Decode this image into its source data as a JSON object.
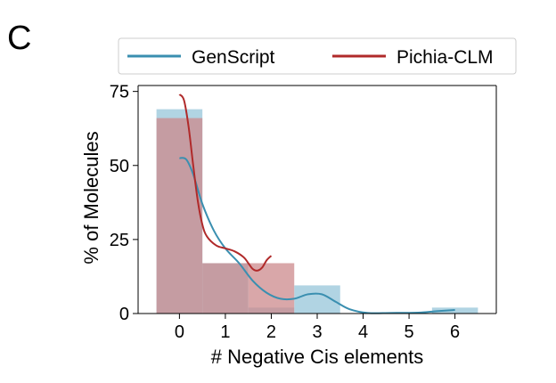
{
  "panel_label": "C",
  "chart_data": {
    "type": "histogram-kde",
    "title": "",
    "xlabel": "# Negative Cis elements",
    "ylabel": "% of Molecules",
    "xlim": [
      -0.9,
      6.9
    ],
    "ylim": [
      0,
      77
    ],
    "xticks": [
      0,
      1,
      2,
      3,
      4,
      5,
      6
    ],
    "yticks": [
      0,
      25,
      50,
      75
    ],
    "legend_position": "top",
    "series": [
      {
        "name": "GenScript",
        "color": "#3a8fb0",
        "bar_color": "#a8cfe0",
        "bin_width": 1,
        "bars": [
          {
            "x": 0,
            "value": 69
          },
          {
            "x": 1,
            "value": 17
          },
          {
            "x": 2,
            "value": 2
          },
          {
            "x": 3,
            "value": 9.5
          },
          {
            "x": 4,
            "value": 0
          },
          {
            "x": 5,
            "value": 0
          },
          {
            "x": 6,
            "value": 2
          }
        ],
        "kde": [
          [
            0,
            52.5
          ],
          [
            0.15,
            52
          ],
          [
            0.3,
            47
          ],
          [
            0.5,
            37
          ],
          [
            0.75,
            28
          ],
          [
            1,
            22
          ],
          [
            1.3,
            17
          ],
          [
            1.6,
            11
          ],
          [
            1.9,
            7
          ],
          [
            2.2,
            5
          ],
          [
            2.5,
            5
          ],
          [
            2.8,
            6.5
          ],
          [
            3.1,
            6.5
          ],
          [
            3.4,
            4
          ],
          [
            3.7,
            1.5
          ],
          [
            4.1,
            0.2
          ],
          [
            4.6,
            0.2
          ],
          [
            5.2,
            0.3
          ],
          [
            5.6,
            0.8
          ],
          [
            6,
            1.2
          ]
        ]
      },
      {
        "name": "Pichia-CLM",
        "color": "#b02a2a",
        "bar_color": "#cc8a8c",
        "bin_width": 1,
        "bars": [
          {
            "x": 0,
            "value": 66
          },
          {
            "x": 1,
            "value": 17
          },
          {
            "x": 2,
            "value": 17
          }
        ],
        "kde": [
          [
            0,
            74
          ],
          [
            0.1,
            72
          ],
          [
            0.2,
            63
          ],
          [
            0.3,
            50
          ],
          [
            0.4,
            38
          ],
          [
            0.5,
            30
          ],
          [
            0.6,
            26
          ],
          [
            0.8,
            23
          ],
          [
            1,
            22
          ],
          [
            1.2,
            21
          ],
          [
            1.4,
            19
          ],
          [
            1.5,
            17
          ],
          [
            1.6,
            15
          ],
          [
            1.7,
            14.5
          ],
          [
            1.8,
            15.5
          ],
          [
            1.9,
            18
          ],
          [
            2,
            19.5
          ]
        ]
      }
    ]
  }
}
